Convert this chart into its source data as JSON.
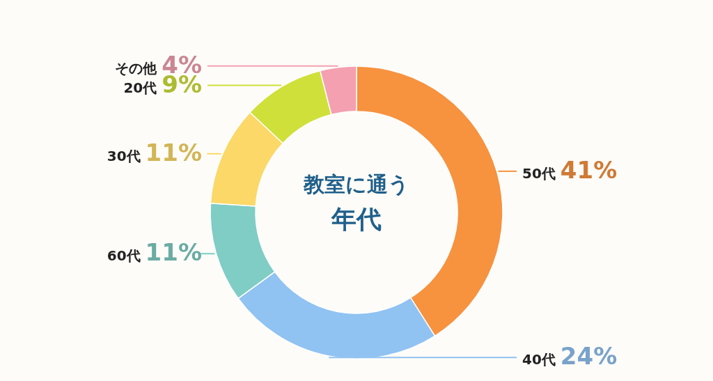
{
  "chart_data": {
    "type": "donut",
    "title": "教室に通う年代",
    "categories": [
      "50代",
      "40代",
      "60代",
      "30代",
      "20代",
      "その他"
    ],
    "values": [
      41,
      24,
      11,
      11,
      9,
      4
    ],
    "value_labels": [
      "41%",
      "24%",
      "11%",
      "11%",
      "9%",
      "4%"
    ],
    "colors": [
      "#f7923f",
      "#90c2f2",
      "#7fcdc4",
      "#fbd867",
      "#cfe03a",
      "#f4a0b0"
    ]
  }
}
